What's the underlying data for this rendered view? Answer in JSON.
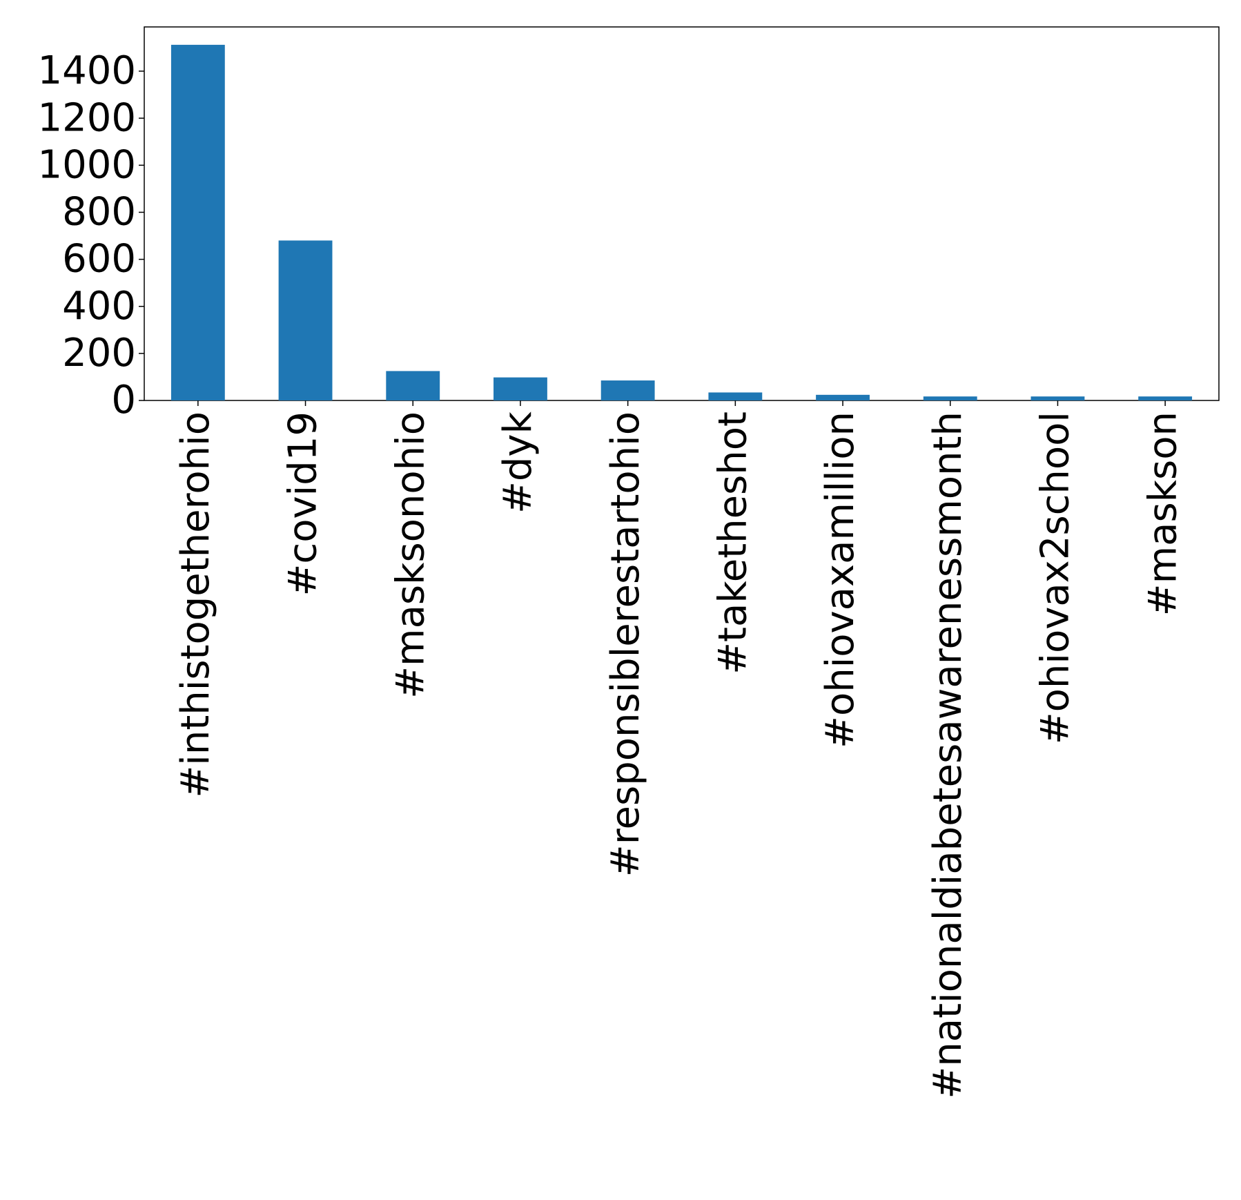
{
  "chart_data": {
    "type": "bar",
    "categories": [
      "#inthistogetherohio",
      "#covid19",
      "#masksonohio",
      "#dyk",
      "#responsiblerestartohio",
      "#taketheshot",
      "#ohiovaxamillion",
      "#nationaldiabetesawarenessmonth",
      "#ohiovax2school",
      "#maskson"
    ],
    "values": [
      1512,
      680,
      125,
      98,
      85,
      34,
      24,
      17,
      17,
      17
    ],
    "color": "#1f77b4",
    "ylim": [
      0,
      1588
    ],
    "yticks": [
      0,
      200,
      400,
      600,
      800,
      1000,
      1200,
      1400
    ],
    "grid": false
  }
}
